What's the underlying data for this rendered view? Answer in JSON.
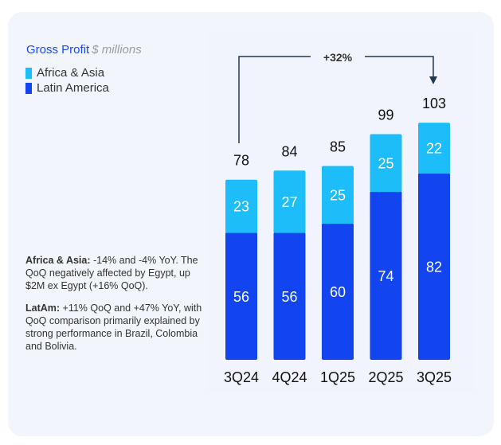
{
  "chart_data": {
    "type": "bar",
    "stacked": true,
    "title": "Gross Profit",
    "unit": "$ millions",
    "categories": [
      "3Q24",
      "4Q24",
      "1Q25",
      "2Q25",
      "3Q25"
    ],
    "series": [
      {
        "name": "Latin America",
        "values": [
          56,
          56,
          60,
          74,
          82
        ],
        "color": "#1245F0"
      },
      {
        "name": "Africa & Asia",
        "values": [
          23,
          27,
          25,
          25,
          22
        ],
        "color": "#1CBDF9"
      }
    ],
    "totals": [
      78,
      84,
      85,
      99,
      103
    ],
    "annotation": {
      "text": "+32%",
      "from": "3Q24",
      "to": "3Q25"
    },
    "legend_order": [
      "Africa & Asia",
      "Latin America"
    ],
    "legend_placement": "top-left",
    "grid": false
  },
  "notes": [
    {
      "bold": "Africa & Asia:",
      "text": " -14% and -4% YoY. The QoQ negatively affected by Egypt, up $2M ex Egypt (+16% QoQ)."
    },
    {
      "bold": "LatAm:",
      "text": " +11% QoQ and +47% YoY, with QoQ comparison primarily explained by strong performance in Brazil, Colombia and Bolivia."
    }
  ]
}
